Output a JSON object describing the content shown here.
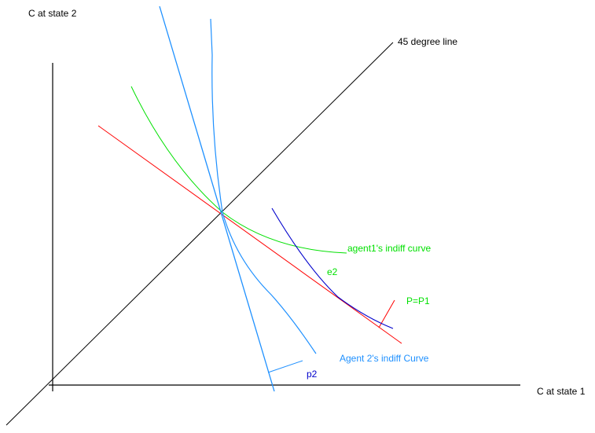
{
  "labels": {
    "y_axis": "C at state 2",
    "x_axis": "C at state 1",
    "diagonal": "45 degree line",
    "agent1_curve": "agent1's indiff curve",
    "e2": "e2",
    "price_line": "P=P1",
    "agent2_curve": "Agent 2's indiff Curve",
    "p2": "p2"
  },
  "colors": {
    "axis": "#000000",
    "diagonal": "#000000",
    "agent1": "#00e000",
    "agent2": "#1e90ff",
    "price_line": "#ff0000",
    "blue_curve": "#0000cc"
  }
}
